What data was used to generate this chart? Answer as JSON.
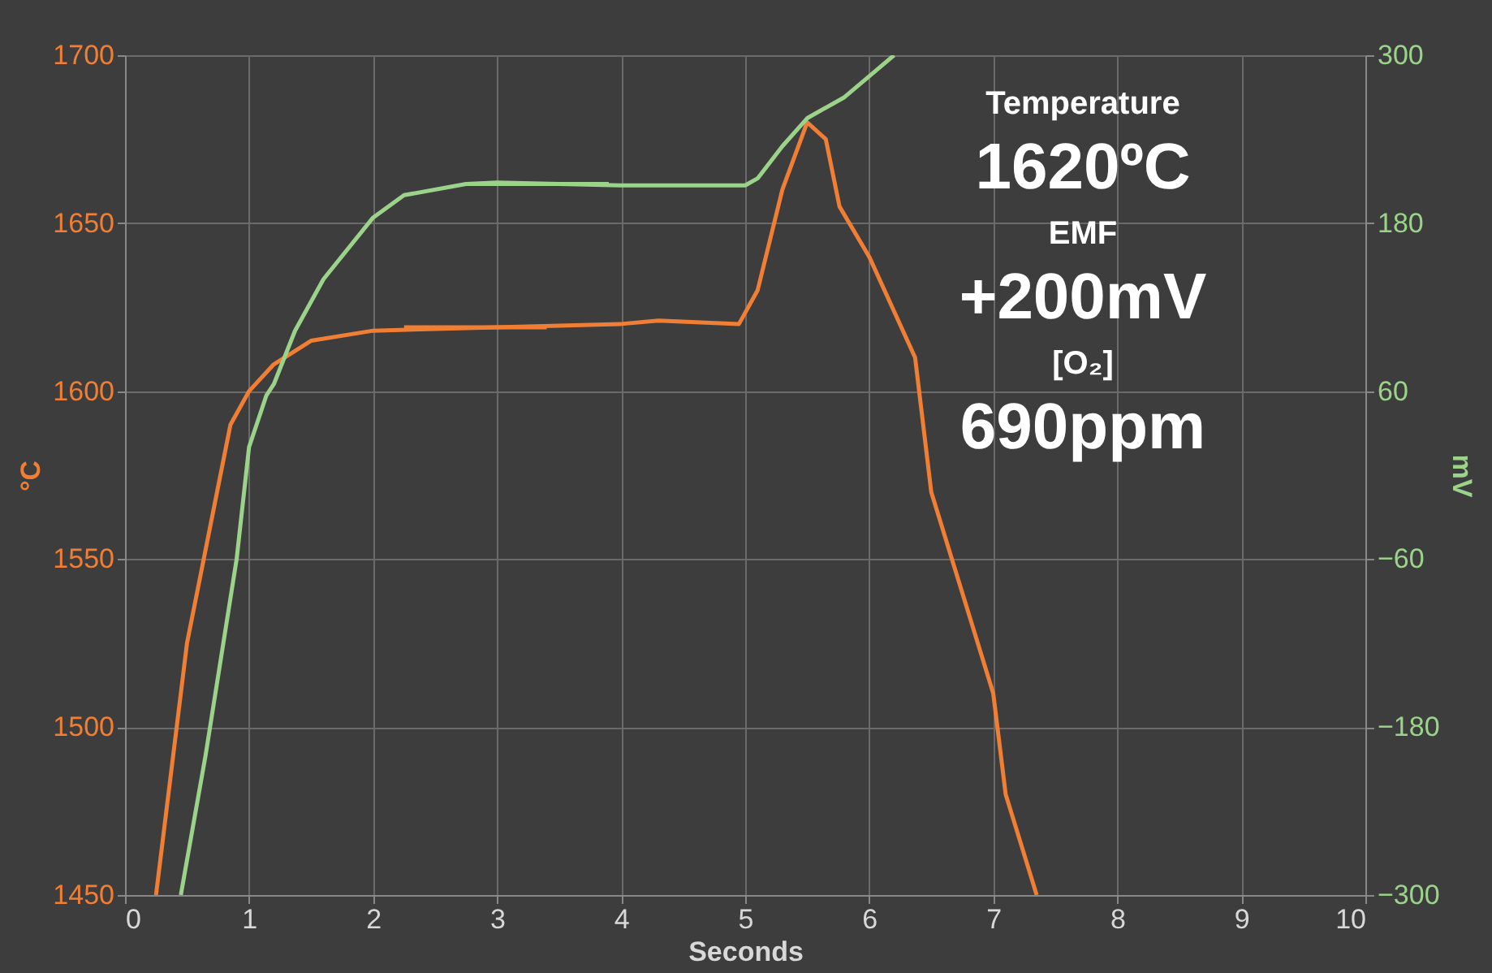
{
  "chart_data": {
    "type": "line",
    "xlabel": "Seconds",
    "ylabel": "°C",
    "y2label": "mV",
    "xlim": [
      0,
      10
    ],
    "xticks": [
      0,
      1,
      2,
      3,
      4,
      5,
      6,
      7,
      8,
      9,
      10
    ],
    "ylim": [
      1450,
      1700
    ],
    "yticks": [
      1450,
      1500,
      1550,
      1600,
      1650,
      1700
    ],
    "y2lim": [
      -300,
      300
    ],
    "y2ticks": [
      -300,
      -180,
      -60,
      60,
      180,
      300
    ],
    "grid": true,
    "line_style": "solid",
    "marker": "none",
    "series": [
      {
        "color": "#f07f35",
        "x": [
          0.25,
          0.5,
          0.85,
          1.0,
          1.2,
          1.5,
          2.0,
          3.0,
          4.0,
          4.3,
          4.95,
          5.1,
          5.3,
          5.5,
          5.65,
          5.76,
          6.0,
          6.37,
          6.5,
          7.0,
          7.1,
          7.35
        ],
        "values": [
          1450,
          1525,
          1590,
          1600,
          1608,
          1615,
          1618,
          1619,
          1620,
          1621,
          1620,
          1630,
          1660,
          1680,
          1675,
          1655,
          1640,
          1610,
          1570,
          1510,
          1480,
          1450
        ]
      },
      {
        "color": "#f07f35",
        "x": [
          2.25,
          3.4
        ],
        "values": [
          1619,
          1619
        ]
      },
      {
        "color": "#9bd38a",
        "axis": "y2",
        "x": [
          0.45,
          0.65,
          0.9,
          1.0,
          1.14,
          1.2,
          1.37,
          1.6,
          2.0,
          2.25,
          2.75,
          3.0,
          4.0,
          5.0,
          5.1,
          5.3,
          5.5,
          5.8,
          6.0,
          6.2
        ],
        "values": [
          -300,
          -200,
          -60,
          20,
          57,
          65,
          103,
          140,
          184,
          200,
          208,
          209,
          207,
          207,
          212,
          235,
          255,
          270,
          285,
          300
        ]
      },
      {
        "color": "#9bd38a",
        "axis": "y2",
        "x": [
          2.75,
          3.9
        ],
        "values": [
          208,
          208
        ]
      }
    ],
    "annotations": [
      "Temperature",
      "1620ºC",
      "EMF",
      "+200mV",
      "[O₂]",
      "690ppm"
    ]
  }
}
